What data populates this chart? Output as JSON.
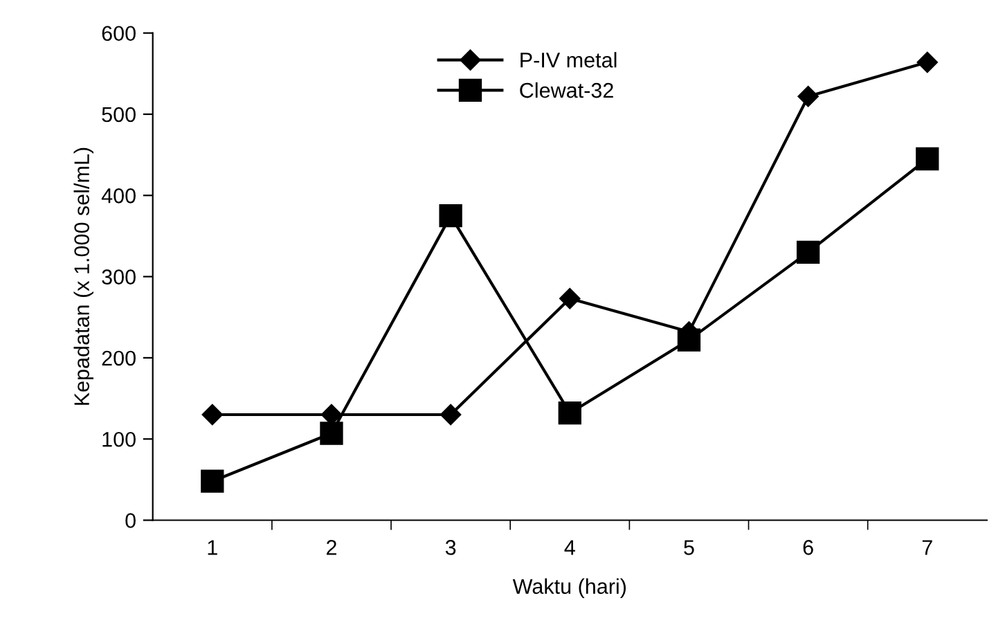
{
  "chart_data": {
    "type": "line",
    "xlabel": "Waktu (hari)",
    "ylabel": "Kepadatan (x 1.000 sel/mL)",
    "categories": [
      "1",
      "2",
      "3",
      "4",
      "5",
      "6",
      "7"
    ],
    "series": [
      {
        "name": "P-IV metal",
        "color": "#000000",
        "marker": "diamond",
        "values": [
          130,
          130,
          130,
          273,
          232,
          522,
          564
        ]
      },
      {
        "name": "Clewat-32",
        "color": "#000000",
        "marker": "square",
        "values": [
          48,
          107,
          375,
          132,
          222,
          330,
          445
        ]
      }
    ],
    "ylim": [
      0,
      600
    ],
    "yticks": [
      0,
      100,
      200,
      300,
      400,
      500,
      600
    ],
    "grid": false,
    "legend": "top",
    "line_style": "solid"
  }
}
